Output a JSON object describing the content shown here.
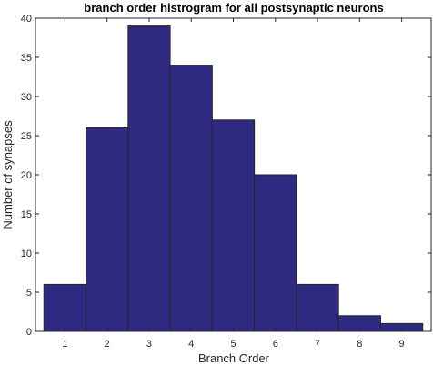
{
  "chart_data": {
    "type": "bar",
    "title": "branch order histrogram for all postsynaptic neurons",
    "xlabel": "Branch Order",
    "ylabel": "Number of synapses",
    "categories": [
      1,
      2,
      3,
      4,
      5,
      6,
      7,
      8,
      9
    ],
    "values": [
      6,
      26,
      39,
      34,
      27,
      20,
      6,
      2,
      1
    ],
    "xlim": [
      0.3,
      9.7
    ],
    "ylim": [
      0,
      40
    ],
    "xticks": [
      "1",
      "2",
      "3",
      "4",
      "5",
      "6",
      "7",
      "8",
      "9"
    ],
    "yticks": [
      "0",
      "5",
      "10",
      "15",
      "20",
      "25",
      "30",
      "35",
      "40"
    ],
    "grid": false,
    "bar_color": "#2e2a82",
    "bar_edge_color": "#262626",
    "axis_color": "#262626"
  }
}
